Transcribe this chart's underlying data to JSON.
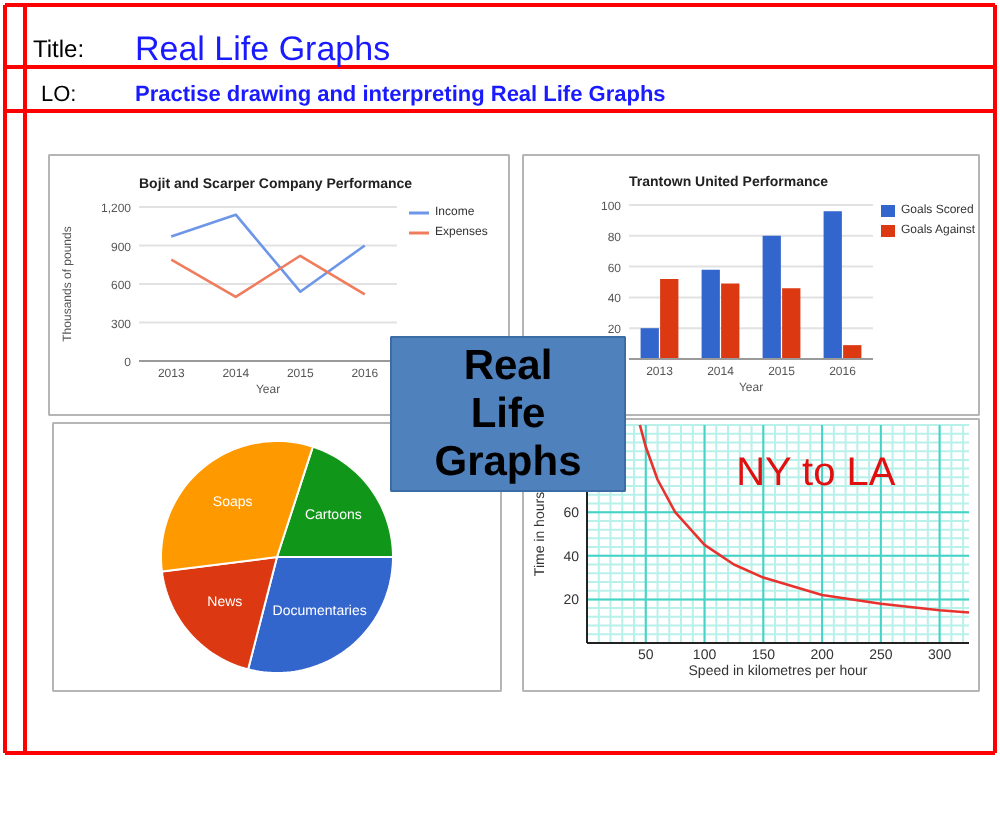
{
  "chart_data": [
    {
      "type": "other",
      "title": "Real Life Graphs",
      "subtitle": "Practise drawing and interpreting Real Life Graphs",
      "annotations": [
        "Title:",
        "LO:"
      ]
    },
    {
      "type": "line",
      "title": "Bojit and Scarper Company Performance",
      "categories": [
        "2013",
        "2014",
        "2015",
        "2016"
      ],
      "series": [
        {
          "name": "Income",
          "color": "#6d96e8",
          "values": [
            970,
            1140,
            540,
            900
          ]
        },
        {
          "name": "Expenses",
          "color": "#ef7c5c",
          "values": [
            790,
            500,
            820,
            520
          ]
        }
      ],
      "xlabel": "Year",
      "ylabel": "Thousands of pounds",
      "ylim": [
        0,
        1200
      ],
      "yticks": [
        0,
        300,
        600,
        900,
        {
          "value": 1200,
          "label": "1,200"
        }
      ],
      "grid": "y",
      "legend": "right"
    },
    {
      "type": "bar",
      "title": "Trantown United Performance",
      "categories": [
        "2013",
        "2014",
        "2015",
        "2016"
      ],
      "series": [
        {
          "name": "Goals Scored",
          "color": "#3366cc",
          "values": [
            20,
            58,
            80,
            96
          ]
        },
        {
          "name": "Goals Against",
          "color": "#dc3912",
          "values": [
            52,
            49,
            46,
            9
          ]
        }
      ],
      "xlabel": "Year",
      "ylim": [
        0,
        100
      ],
      "yticks": [
        20,
        40,
        60,
        80,
        100
      ],
      "grid": "y",
      "legend": "right"
    },
    {
      "type": "other",
      "title": "Real Life Graphs",
      "color": "#4f81bd"
    },
    {
      "type": "pie",
      "categories": [
        "Cartoons",
        "Documentaries",
        "News",
        "Soaps"
      ],
      "values": [
        20,
        29,
        19,
        32
      ],
      "colors": [
        "#109618",
        "#3366cc",
        "#dc3912",
        "#ff9900"
      ]
    },
    {
      "type": "line",
      "title": "NY to LA",
      "x": [
        45,
        50,
        60,
        75,
        100,
        125,
        150,
        175,
        200,
        250,
        300,
        325
      ],
      "series": [
        {
          "color": "#e8322e",
          "values": [
            100,
            90,
            75,
            60,
            45,
            36,
            30,
            26,
            22,
            18,
            15,
            14
          ]
        }
      ],
      "xlabel": "Speed in kilometres per hour",
      "ylabel": "Time in hours",
      "xlim": [
        0,
        325
      ],
      "ylim": [
        0,
        100
      ],
      "xticks": [
        50,
        100,
        150,
        200,
        250,
        300
      ],
      "yticks": [
        20,
        40,
        60
      ],
      "grid": true
    }
  ]
}
